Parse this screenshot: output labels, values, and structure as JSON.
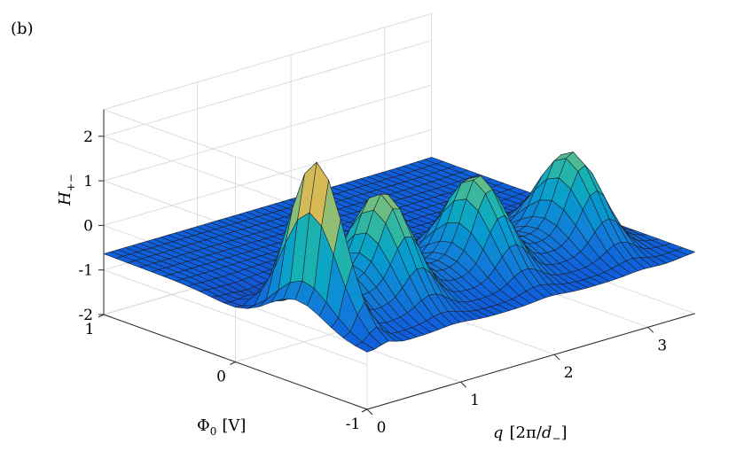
{
  "panel_label": "(b)",
  "chart_data": {
    "type": "surface",
    "title": "",
    "xlabel": "q [2π/d₋]",
    "xlabel_parts": {
      "var": "q",
      "open": "[2π/",
      "d": "d",
      "sub": "−",
      "close": "]"
    },
    "ylabel": "Φ₀ [V]",
    "ylabel_parts": {
      "var": "Φ",
      "sub": "0",
      "unit": "[V]"
    },
    "zlabel": "H₊₋",
    "zlabel_parts": {
      "var": "H",
      "sub": "+−"
    },
    "xlim": [
      0,
      3.5
    ],
    "ylim": [
      -1,
      1
    ],
    "zlim": [
      -2,
      2.6
    ],
    "xticks": [
      0,
      1,
      2,
      3
    ],
    "xtick_labels": [
      "0",
      "1",
      "2",
      "3"
    ],
    "yticks": [
      -1,
      0,
      1
    ],
    "ytick_labels": [
      "-1",
      "0",
      "1"
    ],
    "zticks": [
      -2,
      -1,
      0,
      1,
      2
    ],
    "ztick_labels": [
      "-2",
      "-1",
      "0",
      "1",
      "2"
    ],
    "grid": true,
    "colormap": "parula",
    "surface_samples": {
      "phi": [
        1,
        0.5,
        0,
        -0.5,
        -1
      ],
      "series": [
        {
          "q": 0.0,
          "values": [
            -0.75,
            -0.95,
            -1.2,
            -1.1,
            -0.95
          ]
        },
        {
          "q": 0.25,
          "values": [
            -0.75,
            -0.3,
            1.0,
            2.8,
            0.6
          ]
        },
        {
          "q": 0.5,
          "values": [
            -0.75,
            -0.4,
            0.4,
            1.0,
            0.3
          ]
        },
        {
          "q": 1.0,
          "values": [
            -0.72,
            -0.45,
            0.2,
            1.5,
            -0.35
          ]
        },
        {
          "q": 2.0,
          "values": [
            -0.7,
            -0.5,
            0.1,
            1.6,
            -0.45
          ]
        },
        {
          "q": 3.0,
          "values": [
            -0.68,
            -0.55,
            0.0,
            1.4,
            -0.5
          ]
        },
        {
          "q": 3.5,
          "values": [
            -0.65,
            -0.62,
            -0.6,
            -0.58,
            -0.55
          ]
        }
      ]
    }
  }
}
